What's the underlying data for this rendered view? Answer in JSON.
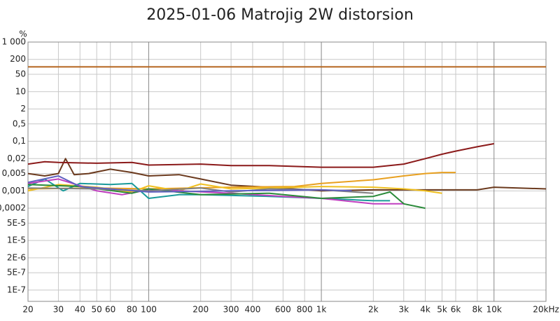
{
  "chart_data": {
    "type": "line",
    "title": "2025-01-06 Matrojig 2W distorsion",
    "y_label": "%",
    "log_x": true,
    "log_y": true,
    "grid": true,
    "xlim": [
      20,
      20000
    ],
    "ylim": [
      3.5e-08,
      1000
    ],
    "xticks": [
      20,
      30,
      40,
      50,
      60,
      80,
      100,
      200,
      300,
      400,
      600,
      800,
      {
        "value": 1000,
        "label": "1k"
      },
      {
        "value": 2000,
        "label": "2k"
      },
      {
        "value": 3000,
        "label": "3k"
      },
      {
        "value": 4000,
        "label": "4k"
      },
      {
        "value": 5000,
        "label": "5k"
      },
      {
        "value": 6000,
        "label": "6k"
      },
      {
        "value": 8000,
        "label": "8k"
      },
      {
        "value": 10000,
        "label": "10k"
      },
      {
        "value": 20000,
        "label": "20kHz"
      }
    ],
    "yticks": [
      {
        "value": 1000,
        "label": "1 000"
      },
      200,
      50,
      10,
      2,
      {
        "value": 0.5,
        "label": "0,5"
      },
      {
        "value": 0.1,
        "label": "0,1"
      },
      {
        "value": 0.02,
        "label": "0,02"
      },
      {
        "value": 0.005,
        "label": "0,005"
      },
      {
        "value": 0.001,
        "label": "0,001"
      },
      {
        "value": 0.0002,
        "label": "0,0002"
      },
      {
        "value": 5e-05,
        "label": "5E-5"
      },
      {
        "value": 1e-05,
        "label": "1E-5"
      },
      {
        "value": 2e-06,
        "label": "2E-6"
      },
      {
        "value": 5e-07,
        "label": "5E-7"
      },
      {
        "value": 1e-07,
        "label": "1E-7"
      }
    ],
    "series": [
      {
        "color": "#b5651d",
        "x": [
          20,
          20000
        ],
        "values": [
          100,
          100
        ]
      },
      {
        "color": "#6b3a1e",
        "x": [
          20,
          25,
          30,
          33,
          37,
          45,
          60,
          80,
          100,
          150,
          200,
          300,
          500,
          1000,
          2000,
          5000,
          8000,
          10000,
          20000
        ],
        "values": [
          0.005,
          0.004,
          0.005,
          0.02,
          0.0045,
          0.005,
          0.0075,
          0.0055,
          0.004,
          0.0045,
          0.003,
          0.0017,
          0.0014,
          0.001,
          0.0011,
          0.0011,
          0.0011,
          0.0014,
          0.0012
        ]
      },
      {
        "color": "#8b1a1a",
        "x": [
          20,
          25,
          30,
          50,
          80,
          100,
          200,
          300,
          500,
          1000,
          2000,
          3000,
          4000,
          5000,
          6000,
          8000,
          10000
        ],
        "values": [
          0.012,
          0.015,
          0.014,
          0.013,
          0.014,
          0.011,
          0.012,
          0.0105,
          0.0105,
          0.009,
          0.009,
          0.012,
          0.02,
          0.03,
          0.04,
          0.06,
          0.08
        ]
      },
      {
        "color": "#e8a020",
        "x": [
          20,
          50,
          100,
          300,
          700,
          1000,
          2000,
          3000,
          4000,
          5000,
          6000
        ],
        "values": [
          0.0012,
          0.0013,
          0.0012,
          0.0014,
          0.0015,
          0.002,
          0.0028,
          0.004,
          0.005,
          0.0055,
          0.0055
        ]
      },
      {
        "color": "#f0c020",
        "x": [
          20,
          30,
          50,
          80,
          100,
          150,
          200,
          300,
          500,
          1000,
          2000,
          3000,
          4000,
          5000
        ],
        "values": [
          0.001,
          0.0018,
          0.0014,
          0.0009,
          0.0016,
          0.001,
          0.0019,
          0.0012,
          0.0013,
          0.0015,
          0.0014,
          0.0012,
          0.001,
          0.0008
        ]
      },
      {
        "color": "#1a9a9a",
        "x": [
          20,
          25,
          32,
          40,
          60,
          80,
          100,
          150,
          200,
          500,
          1000,
          2000,
          2500
        ],
        "values": [
          0.0015,
          0.003,
          0.001,
          0.002,
          0.0018,
          0.002,
          0.0005,
          0.0007,
          0.0007,
          0.0006,
          0.0005,
          0.0004,
          0.0004
        ]
      },
      {
        "color": "#c040c0",
        "x": [
          20,
          30,
          50,
          70,
          100,
          150,
          300,
          600,
          1000,
          2000,
          3000
        ],
        "values": [
          0.002,
          0.003,
          0.001,
          0.0007,
          0.0011,
          0.001,
          0.0008,
          0.0006,
          0.0005,
          0.0003,
          0.0003
        ]
      },
      {
        "color": "#2a8a3a",
        "x": [
          20,
          40,
          80,
          100,
          200,
          500,
          1000,
          2000,
          2500,
          3000,
          4000
        ],
        "values": [
          0.0018,
          0.0015,
          0.0008,
          0.0012,
          0.0007,
          0.0008,
          0.0005,
          0.0006,
          0.0009,
          0.0003,
          0.0002
        ]
      },
      {
        "color": "#808080",
        "x": [
          20,
          50,
          100,
          200,
          300,
          500,
          1000,
          2000
        ],
        "values": [
          0.0013,
          0.0012,
          0.001,
          0.0013,
          0.0009,
          0.0012,
          0.0011,
          0.0008
        ]
      },
      {
        "color": "#6060c0",
        "x": [
          20,
          30,
          40,
          100,
          300,
          1000,
          1500
        ],
        "values": [
          0.0022,
          0.004,
          0.0015,
          0.0009,
          0.001,
          0.0011,
          0.001
        ]
      }
    ]
  }
}
